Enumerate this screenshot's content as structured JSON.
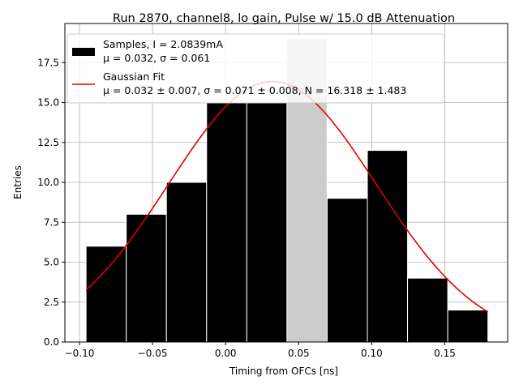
{
  "chart_data": {
    "type": "bar",
    "title": "Run 2870, channel8, lo gain, Pulse w/ 15.0 dB Attenuation",
    "xlabel": "Timing from OFCs [ns]",
    "ylabel": "Entries",
    "xlim": [
      -0.11,
      0.193
    ],
    "ylim": [
      0,
      19.95
    ],
    "grid": true,
    "legend_position": "top-left",
    "x_ticks": [
      -0.1,
      -0.05,
      0.0,
      0.05,
      0.1,
      0.15
    ],
    "x_tick_labels": [
      "−0.10",
      "−0.05",
      "0.00",
      "0.05",
      "0.10",
      "0.15"
    ],
    "y_ticks": [
      0.0,
      2.5,
      5.0,
      7.5,
      10.0,
      12.5,
      15.0,
      17.5
    ],
    "y_tick_labels": [
      "0.0",
      "2.5",
      "5.0",
      "7.5",
      "10.0",
      "12.5",
      "15.0",
      "17.5"
    ],
    "bin_edges": [
      -0.0955,
      -0.068,
      -0.0405,
      -0.013,
      0.0145,
      0.042,
      0.0695,
      0.097,
      0.1245,
      0.152,
      0.1795
    ],
    "values": [
      6,
      8,
      10,
      15,
      15,
      19,
      9,
      12,
      4,
      2
    ],
    "highlight_bin_index": 5,
    "fit_curve": {
      "mu": 0.032,
      "sigma": 0.071,
      "N": 16.318,
      "x_range": [
        -0.0955,
        0.1795
      ]
    },
    "legend": {
      "samples_line1": "Samples, I = 2.0839mA",
      "samples_line2": "μ = 0.032, σ = 0.061",
      "fit_line1": "Gaussian Fit",
      "fit_line2": "μ = 0.032 ± 0.007, σ = 0.071 ± 0.008, N = 16.318 ± 1.483"
    },
    "colors": {
      "bar": "#000000",
      "bar_edge": "#ffffff",
      "highlight_bar": "#cccccc",
      "fit_line": "#e00000",
      "grid": "#b0b0b0"
    }
  }
}
